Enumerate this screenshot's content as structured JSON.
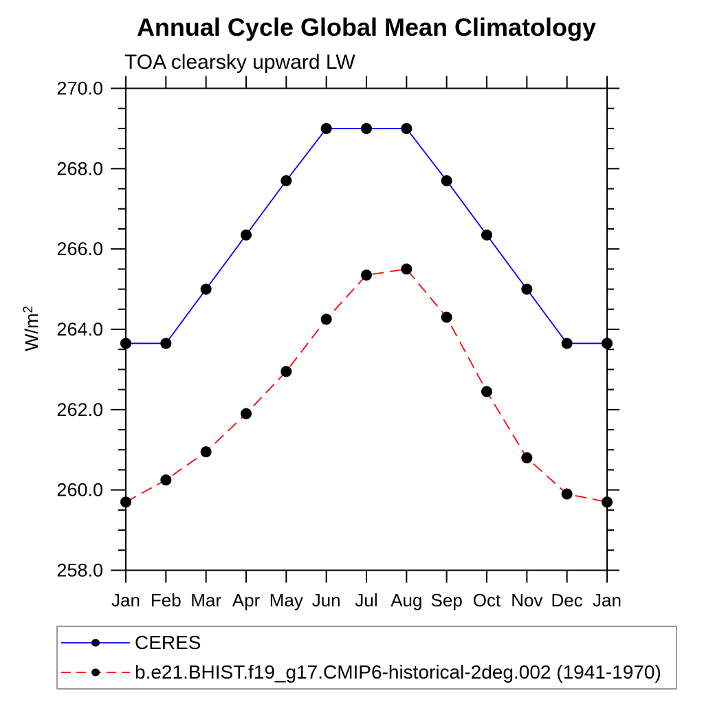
{
  "chart_data": {
    "type": "line",
    "title": "Annual Cycle Global Mean Climatology",
    "subtitle": "TOA clearsky upward LW",
    "ylabel": "W/m²",
    "xlabel": "",
    "categories": [
      "Jan",
      "Feb",
      "Mar",
      "Apr",
      "May",
      "Jun",
      "Jul",
      "Aug",
      "Sep",
      "Oct",
      "Nov",
      "Dec",
      "Jan"
    ],
    "ylim": [
      258.0,
      270.0
    ],
    "ytick_step": 2.0,
    "ytick_minor_step": 0.5,
    "ytick_labels": [
      "258.0",
      "260.0",
      "262.0",
      "264.0",
      "266.0",
      "268.0",
      "270.0"
    ],
    "grid": false,
    "legend_position": "bottom-left",
    "axis_color": "#000000",
    "legend_border_color": "#999999",
    "marker_color": "#000000",
    "series": [
      {
        "name": "CERES",
        "color": "#0000ff",
        "line_style": "solid",
        "marker": "circle",
        "values": [
          263.65,
          263.65,
          265.0,
          266.35,
          267.7,
          269.0,
          269.0,
          269.0,
          267.7,
          266.35,
          265.0,
          263.65,
          263.65
        ]
      },
      {
        "name": "b.e21.BHIST.f19_g17.CMIP6-historical-2deg.002 (1941-1970)",
        "color": "#ff0000",
        "line_style": "dashed",
        "marker": "circle",
        "values": [
          259.7,
          260.25,
          260.95,
          261.9,
          262.95,
          264.25,
          265.35,
          265.5,
          264.3,
          262.45,
          260.8,
          259.9,
          259.7
        ]
      }
    ]
  }
}
